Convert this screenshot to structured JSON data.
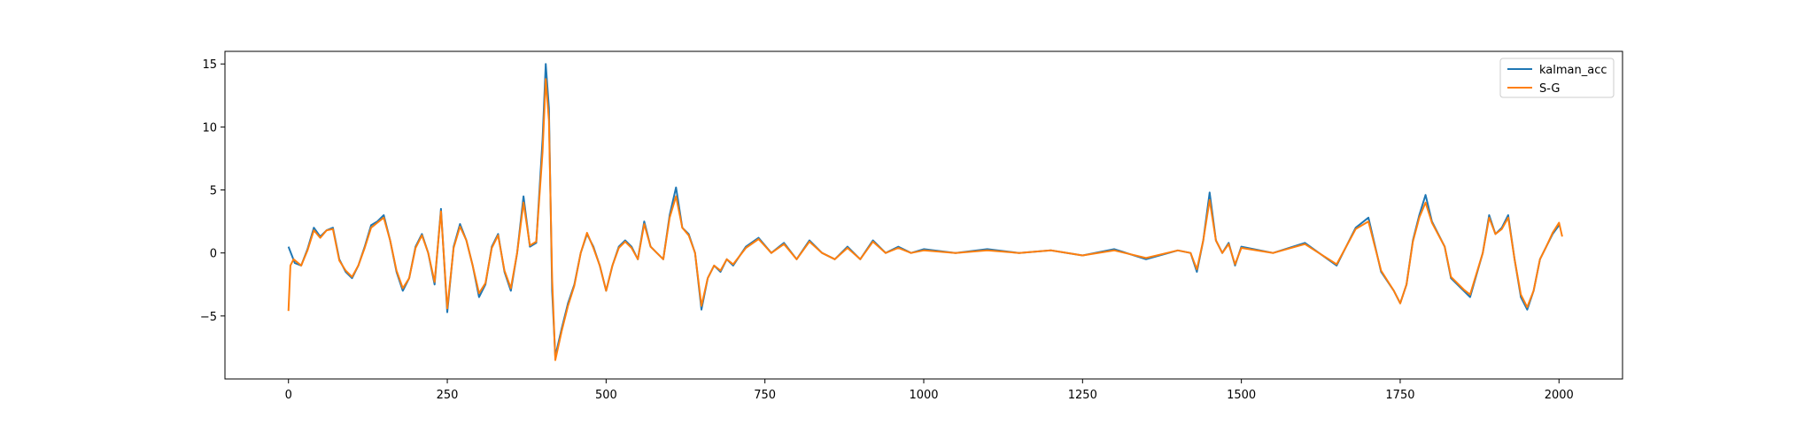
{
  "chart_data": {
    "type": "line",
    "title": "",
    "xlabel": "",
    "ylabel": "",
    "xlim": [
      -100,
      2100
    ],
    "ylim": [
      -10,
      16
    ],
    "x_ticks": [
      0,
      250,
      500,
      750,
      1000,
      1250,
      1500,
      1750,
      2000
    ],
    "y_ticks": [
      -5,
      0,
      5,
      10,
      15
    ],
    "x_tick_labels": [
      "0",
      "250",
      "500",
      "750",
      "1000",
      "1250",
      "1500",
      "1750",
      "2000"
    ],
    "y_tick_labels": [
      "−5",
      "0",
      "5",
      "10",
      "15"
    ],
    "grid": false,
    "legend_position": "top-right",
    "series": [
      {
        "name": "kalman_acc",
        "color": "#1f77b4",
        "points": [
          [
            0,
            0.5
          ],
          [
            10,
            -0.8
          ],
          [
            20,
            -1.0
          ],
          [
            30,
            0.3
          ],
          [
            40,
            2.0
          ],
          [
            50,
            1.3
          ],
          [
            60,
            1.8
          ],
          [
            70,
            2.0
          ],
          [
            80,
            -0.5
          ],
          [
            90,
            -1.5
          ],
          [
            100,
            -2.0
          ],
          [
            110,
            -1.0
          ],
          [
            120,
            0.5
          ],
          [
            130,
            2.2
          ],
          [
            140,
            2.5
          ],
          [
            150,
            3.0
          ],
          [
            160,
            1.0
          ],
          [
            170,
            -1.5
          ],
          [
            180,
            -3.0
          ],
          [
            190,
            -2.0
          ],
          [
            200,
            0.5
          ],
          [
            210,
            1.5
          ],
          [
            220,
            0.0
          ],
          [
            230,
            -2.5
          ],
          [
            240,
            3.5
          ],
          [
            250,
            -4.7
          ],
          [
            260,
            0.5
          ],
          [
            270,
            2.3
          ],
          [
            280,
            1.0
          ],
          [
            290,
            -1.0
          ],
          [
            300,
            -3.5
          ],
          [
            310,
            -2.5
          ],
          [
            320,
            0.5
          ],
          [
            330,
            1.5
          ],
          [
            340,
            -1.5
          ],
          [
            350,
            -3.0
          ],
          [
            360,
            0.0
          ],
          [
            370,
            4.5
          ],
          [
            380,
            0.5
          ],
          [
            390,
            0.8
          ],
          [
            400,
            9.0
          ],
          [
            405,
            15.0
          ],
          [
            410,
            11.5
          ],
          [
            415,
            -3.0
          ],
          [
            420,
            -8.2
          ],
          [
            430,
            -6.0
          ],
          [
            440,
            -4.0
          ],
          [
            450,
            -2.5
          ],
          [
            460,
            0.0
          ],
          [
            470,
            1.5
          ],
          [
            480,
            0.5
          ],
          [
            490,
            -1.0
          ],
          [
            500,
            -3.0
          ],
          [
            510,
            -1.0
          ],
          [
            520,
            0.5
          ],
          [
            530,
            1.0
          ],
          [
            540,
            0.5
          ],
          [
            550,
            -0.5
          ],
          [
            560,
            2.5
          ],
          [
            570,
            0.5
          ],
          [
            580,
            0.0
          ],
          [
            590,
            -0.5
          ],
          [
            600,
            3.0
          ],
          [
            610,
            5.2
          ],
          [
            620,
            2.0
          ],
          [
            630,
            1.5
          ],
          [
            640,
            0.0
          ],
          [
            650,
            -4.5
          ],
          [
            660,
            -2.0
          ],
          [
            670,
            -1.0
          ],
          [
            680,
            -1.5
          ],
          [
            690,
            -0.5
          ],
          [
            700,
            -1.0
          ],
          [
            720,
            0.5
          ],
          [
            740,
            1.2
          ],
          [
            760,
            0.0
          ],
          [
            780,
            0.8
          ],
          [
            800,
            -0.5
          ],
          [
            820,
            1.0
          ],
          [
            840,
            0.0
          ],
          [
            860,
            -0.5
          ],
          [
            880,
            0.5
          ],
          [
            900,
            -0.5
          ],
          [
            920,
            1.0
          ],
          [
            940,
            0.0
          ],
          [
            960,
            0.5
          ],
          [
            980,
            0.0
          ],
          [
            1000,
            0.3
          ],
          [
            1050,
            0.0
          ],
          [
            1100,
            0.3
          ],
          [
            1150,
            0.0
          ],
          [
            1200,
            0.2
          ],
          [
            1250,
            -0.2
          ],
          [
            1300,
            0.3
          ],
          [
            1350,
            -0.5
          ],
          [
            1400,
            0.2
          ],
          [
            1420,
            0.0
          ],
          [
            1430,
            -1.5
          ],
          [
            1440,
            1.0
          ],
          [
            1450,
            4.8
          ],
          [
            1460,
            1.0
          ],
          [
            1470,
            0.0
          ],
          [
            1480,
            0.8
          ],
          [
            1490,
            -1.0
          ],
          [
            1500,
            0.5
          ],
          [
            1550,
            0.0
          ],
          [
            1600,
            0.8
          ],
          [
            1650,
            -1.0
          ],
          [
            1680,
            2.0
          ],
          [
            1700,
            2.8
          ],
          [
            1720,
            -1.5
          ],
          [
            1740,
            -3.0
          ],
          [
            1750,
            -4.0
          ],
          [
            1760,
            -2.5
          ],
          [
            1770,
            1.0
          ],
          [
            1780,
            3.0
          ],
          [
            1790,
            4.6
          ],
          [
            1800,
            2.5
          ],
          [
            1820,
            0.5
          ],
          [
            1830,
            -2.0
          ],
          [
            1850,
            -3.0
          ],
          [
            1860,
            -3.5
          ],
          [
            1880,
            0.0
          ],
          [
            1890,
            3.0
          ],
          [
            1900,
            1.5
          ],
          [
            1910,
            2.0
          ],
          [
            1920,
            3.0
          ],
          [
            1930,
            -0.5
          ],
          [
            1940,
            -3.5
          ],
          [
            1950,
            -4.5
          ],
          [
            1960,
            -3.0
          ],
          [
            1970,
            -0.5
          ],
          [
            1980,
            0.5
          ],
          [
            1990,
            1.5
          ],
          [
            2000,
            2.2
          ]
        ]
      },
      {
        "name": "S-G",
        "color": "#ff7f0e",
        "points": [
          [
            0,
            -4.6
          ],
          [
            3,
            -1.0
          ],
          [
            8,
            -0.5
          ],
          [
            20,
            -1.0
          ],
          [
            30,
            0.2
          ],
          [
            40,
            1.8
          ],
          [
            50,
            1.2
          ],
          [
            60,
            1.8
          ],
          [
            70,
            1.9
          ],
          [
            80,
            -0.6
          ],
          [
            90,
            -1.4
          ],
          [
            100,
            -1.9
          ],
          [
            110,
            -1.0
          ],
          [
            120,
            0.4
          ],
          [
            130,
            2.0
          ],
          [
            140,
            2.4
          ],
          [
            150,
            2.8
          ],
          [
            160,
            1.0
          ],
          [
            170,
            -1.4
          ],
          [
            180,
            -2.8
          ],
          [
            190,
            -2.0
          ],
          [
            200,
            0.4
          ],
          [
            210,
            1.4
          ],
          [
            220,
            0.0
          ],
          [
            230,
            -2.3
          ],
          [
            240,
            3.3
          ],
          [
            250,
            -4.4
          ],
          [
            260,
            0.4
          ],
          [
            270,
            2.1
          ],
          [
            280,
            1.0
          ],
          [
            290,
            -1.0
          ],
          [
            300,
            -3.2
          ],
          [
            310,
            -2.4
          ],
          [
            320,
            0.4
          ],
          [
            330,
            1.4
          ],
          [
            340,
            -1.4
          ],
          [
            350,
            -2.8
          ],
          [
            360,
            0.0
          ],
          [
            370,
            4.0
          ],
          [
            380,
            0.6
          ],
          [
            390,
            0.9
          ],
          [
            400,
            8.0
          ],
          [
            405,
            13.8
          ],
          [
            410,
            10.5
          ],
          [
            415,
            -2.0
          ],
          [
            420,
            -8.5
          ],
          [
            430,
            -6.2
          ],
          [
            440,
            -4.2
          ],
          [
            450,
            -2.6
          ],
          [
            460,
            0.0
          ],
          [
            470,
            1.6
          ],
          [
            480,
            0.4
          ],
          [
            490,
            -1.0
          ],
          [
            500,
            -3.0
          ],
          [
            510,
            -1.0
          ],
          [
            520,
            0.4
          ],
          [
            530,
            0.9
          ],
          [
            540,
            0.4
          ],
          [
            550,
            -0.5
          ],
          [
            560,
            2.3
          ],
          [
            570,
            0.5
          ],
          [
            580,
            0.0
          ],
          [
            590,
            -0.5
          ],
          [
            600,
            2.8
          ],
          [
            610,
            4.5
          ],
          [
            620,
            2.0
          ],
          [
            630,
            1.4
          ],
          [
            640,
            0.0
          ],
          [
            650,
            -4.2
          ],
          [
            660,
            -2.0
          ],
          [
            670,
            -1.0
          ],
          [
            680,
            -1.4
          ],
          [
            690,
            -0.5
          ],
          [
            700,
            -0.9
          ],
          [
            720,
            0.4
          ],
          [
            740,
            1.1
          ],
          [
            760,
            0.0
          ],
          [
            780,
            0.7
          ],
          [
            800,
            -0.5
          ],
          [
            820,
            0.9
          ],
          [
            840,
            0.0
          ],
          [
            860,
            -0.5
          ],
          [
            880,
            0.4
          ],
          [
            900,
            -0.5
          ],
          [
            920,
            0.9
          ],
          [
            940,
            0.0
          ],
          [
            960,
            0.4
          ],
          [
            980,
            0.0
          ],
          [
            1000,
            0.2
          ],
          [
            1050,
            0.0
          ],
          [
            1100,
            0.2
          ],
          [
            1150,
            0.0
          ],
          [
            1200,
            0.2
          ],
          [
            1250,
            -0.2
          ],
          [
            1300,
            0.2
          ],
          [
            1350,
            -0.4
          ],
          [
            1400,
            0.2
          ],
          [
            1420,
            0.0
          ],
          [
            1430,
            -1.3
          ],
          [
            1440,
            1.0
          ],
          [
            1450,
            4.2
          ],
          [
            1460,
            1.0
          ],
          [
            1470,
            0.0
          ],
          [
            1480,
            0.7
          ],
          [
            1490,
            -0.9
          ],
          [
            1500,
            0.4
          ],
          [
            1550,
            0.0
          ],
          [
            1600,
            0.7
          ],
          [
            1650,
            -0.9
          ],
          [
            1680,
            1.9
          ],
          [
            1700,
            2.5
          ],
          [
            1720,
            -1.4
          ],
          [
            1740,
            -3.0
          ],
          [
            1750,
            -4.0
          ],
          [
            1760,
            -2.5
          ],
          [
            1770,
            0.9
          ],
          [
            1780,
            2.8
          ],
          [
            1790,
            4.0
          ],
          [
            1800,
            2.4
          ],
          [
            1820,
            0.5
          ],
          [
            1830,
            -1.9
          ],
          [
            1850,
            -2.9
          ],
          [
            1860,
            -3.3
          ],
          [
            1880,
            0.0
          ],
          [
            1890,
            2.8
          ],
          [
            1900,
            1.5
          ],
          [
            1910,
            1.9
          ],
          [
            1920,
            2.8
          ],
          [
            1930,
            -0.5
          ],
          [
            1940,
            -3.3
          ],
          [
            1950,
            -4.3
          ],
          [
            1960,
            -3.0
          ],
          [
            1970,
            -0.5
          ],
          [
            1980,
            0.5
          ],
          [
            1990,
            1.6
          ],
          [
            2000,
            2.4
          ],
          [
            2005,
            1.3
          ]
        ]
      }
    ]
  }
}
